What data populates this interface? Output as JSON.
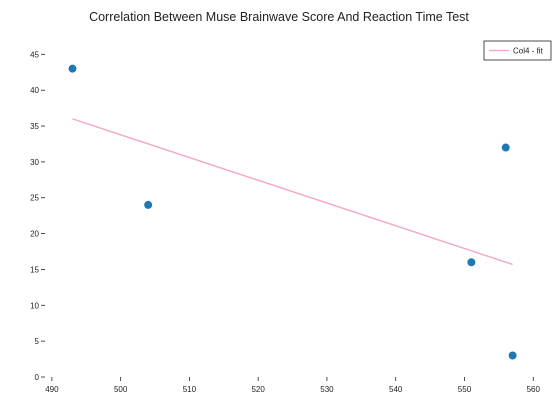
{
  "chart_data": {
    "type": "scatter",
    "title": "Correlation Between Muse Brainwave Score And Reaction Time Test",
    "xlabel": "",
    "ylabel": "",
    "xlim": [
      489,
      562
    ],
    "ylim": [
      0,
      47
    ],
    "xticks": [
      490,
      500,
      510,
      520,
      530,
      540,
      550,
      560
    ],
    "yticks": [
      0,
      5,
      10,
      15,
      20,
      25,
      30,
      35,
      40,
      45
    ],
    "grid": false,
    "legend": "top-right",
    "points": [
      {
        "x": 493,
        "y": 43
      },
      {
        "x": 504,
        "y": 24
      },
      {
        "x": 551,
        "y": 16
      },
      {
        "x": 556,
        "y": 32
      },
      {
        "x": 557,
        "y": 3
      }
    ],
    "series": [
      {
        "name": "Col4 - fit",
        "type": "line",
        "x": [
          493,
          557
        ],
        "y": [
          36.0,
          15.7
        ]
      }
    ],
    "colors": {
      "points": "#1f77b4",
      "fit": "#f4a6c8",
      "axis": "#222222"
    }
  }
}
